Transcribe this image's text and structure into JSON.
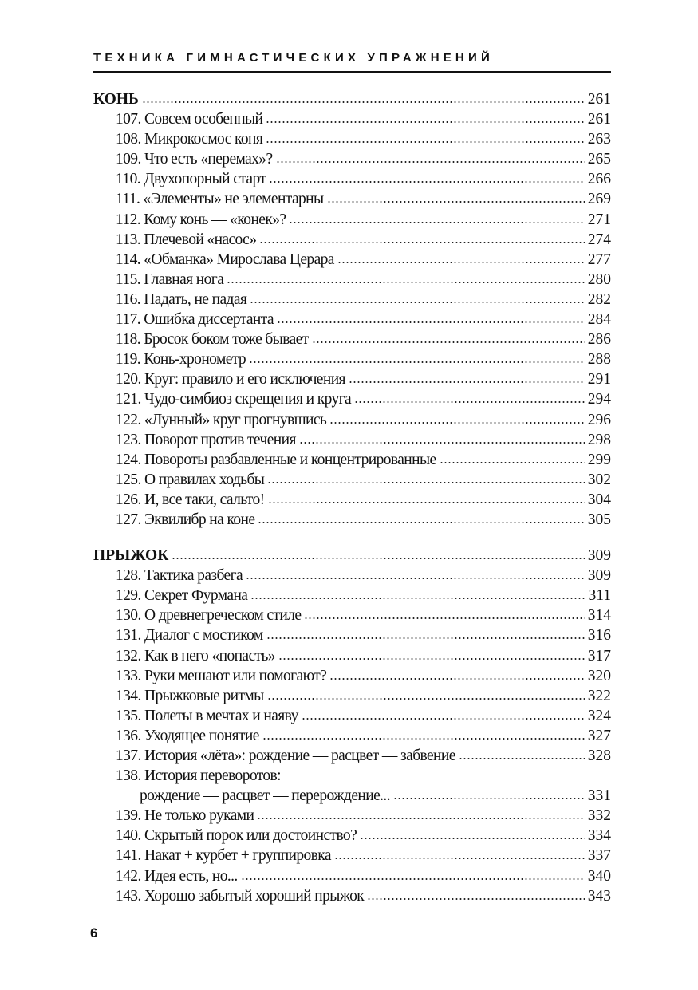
{
  "running_header": "ТЕХНИКА ГИМНАСТИЧЕСКИХ УПРАЖНЕНИЙ",
  "page_number": "6",
  "sections": [
    {
      "title": "КОНЬ",
      "page": "261",
      "items": [
        {
          "title": "107. Совсем особенный",
          "page": "261"
        },
        {
          "title": "108. Микрокосмос коня",
          "page": "263"
        },
        {
          "title": "109. Что есть «перемах»?",
          "page": "265"
        },
        {
          "title": "110. Двухопорный старт",
          "page": "266"
        },
        {
          "title": "111. «Элементы» не элементарны",
          "page": "269"
        },
        {
          "title": "112. Кому конь — «конек»?",
          "page": "271"
        },
        {
          "title": "113. Плечевой «насос»",
          "page": "274"
        },
        {
          "title": "114. «Обманка» Мирослава Церара",
          "page": "277"
        },
        {
          "title": "115. Главная нога",
          "page": "280"
        },
        {
          "title": "116. Падать, не падая",
          "page": "282"
        },
        {
          "title": "117. Ошибка диссертанта",
          "page": "284"
        },
        {
          "title": "118. Бросок боком тоже бывает",
          "page": "286"
        },
        {
          "title": "119. Конь-хронометр",
          "page": "288"
        },
        {
          "title": "120. Круг: правило и его исключения",
          "page": "291"
        },
        {
          "title": "121. Чудо-симбиоз скрещения и круга",
          "page": "294"
        },
        {
          "title": "122. «Лунный» круг прогнувшись",
          "page": "296"
        },
        {
          "title": "123. Поворот против течения",
          "page": "298"
        },
        {
          "title": "124. Повороты разбавленные и концентрированные",
          "page": "299"
        },
        {
          "title": "125. О правилах ходьбы",
          "page": "302"
        },
        {
          "title": "126. И, все таки, сальто!",
          "page": "304"
        },
        {
          "title": "127. Эквилибр на коне",
          "page": "305"
        }
      ]
    },
    {
      "title": "ПРЫЖОК",
      "page": "309",
      "items": [
        {
          "title": "128. Тактика разбега",
          "page": "309"
        },
        {
          "title": "129. Секрет Фурмана",
          "page": "311"
        },
        {
          "title": "130. О древнегреческом стиле",
          "page": "314"
        },
        {
          "title": "131. Диалог с мостиком",
          "page": "316"
        },
        {
          "title": "132. Как в него «попасть»",
          "page": "317"
        },
        {
          "title": "133. Руки мешают или помогают?",
          "page": "320"
        },
        {
          "title": "134. Прыжковые ритмы",
          "page": "322"
        },
        {
          "title": "135. Полеты в мечтах и наяву",
          "page": "324"
        },
        {
          "title": "136. Уходящее понятие",
          "page": "327"
        },
        {
          "title": "137. История «лёта»: рождение — расцвет — забвение",
          "page": "328"
        },
        {
          "title": "138. История переворотов:",
          "continuation": "рождение — расцвет — перерождение...",
          "page": "331"
        },
        {
          "title": "139. Не только руками",
          "page": "332"
        },
        {
          "title": "140. Скрытый порок или достоинство?",
          "page": "334"
        },
        {
          "title": "141. Накат + курбет + группировка",
          "page": "337"
        },
        {
          "title": "142. Идея есть, но...",
          "page": "340"
        },
        {
          "title": "143. Хорошо забытый хороший прыжок",
          "page": "343"
        }
      ]
    }
  ]
}
